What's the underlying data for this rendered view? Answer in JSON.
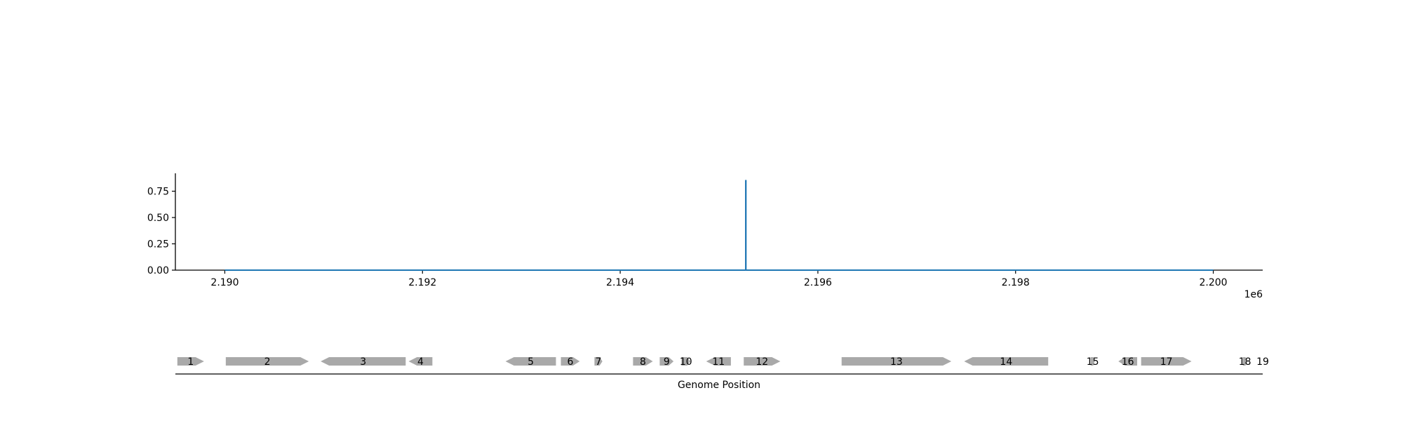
{
  "chart_data": [
    {
      "type": "line",
      "title": "",
      "xlabel": "",
      "ylabel": "",
      "x_offset_label": "1e6",
      "xlim": [
        2189500,
        2200500
      ],
      "ylim": [
        0,
        0.92
      ],
      "xticks": [
        2190000,
        2192000,
        2194000,
        2196000,
        2198000,
        2200000
      ],
      "xtick_labels": [
        "2.190",
        "2.192",
        "2.194",
        "2.196",
        "2.198",
        "2.200"
      ],
      "yticks": [
        0.0,
        0.25,
        0.5,
        0.75
      ],
      "ytick_labels": [
        "0.00",
        "0.25",
        "0.50",
        "0.75"
      ],
      "grid": false,
      "color": "#1f77b4",
      "series": [
        {
          "x": [
            2190000,
            2195270,
            2195270,
            2195272,
            2195272,
            2200000
          ],
          "y": [
            0.0,
            0.0,
            0.85,
            0.85,
            0.0,
            0.0
          ]
        }
      ]
    },
    {
      "type": "gene-track",
      "title": "",
      "xlabel": "Genome Position",
      "xlim": [
        2189500,
        2200500
      ],
      "gene_color": "#a9a9a9",
      "genes": [
        {
          "label": "1",
          "start": 2189520,
          "end": 2189790,
          "strand": "+"
        },
        {
          "label": "2",
          "start": 2190010,
          "end": 2190850,
          "strand": "+"
        },
        {
          "label": "3",
          "start": 2190970,
          "end": 2191830,
          "strand": "-"
        },
        {
          "label": "4",
          "start": 2191860,
          "end": 2192100,
          "strand": "-"
        },
        {
          "label": "5",
          "start": 2192840,
          "end": 2193350,
          "strand": "-"
        },
        {
          "label": "6",
          "start": 2193400,
          "end": 2193590,
          "strand": "+"
        },
        {
          "label": "7",
          "start": 2193740,
          "end": 2193820,
          "strand": "+"
        },
        {
          "label": "8",
          "start": 2194130,
          "end": 2194330,
          "strand": "+"
        },
        {
          "label": "9",
          "start": 2194400,
          "end": 2194540,
          "strand": "+"
        },
        {
          "label": "10",
          "start": 2194620,
          "end": 2194710,
          "strand": "+"
        },
        {
          "label": "11",
          "start": 2194870,
          "end": 2195120,
          "strand": "-"
        },
        {
          "label": "12",
          "start": 2195250,
          "end": 2195620,
          "strand": "+"
        },
        {
          "label": "13",
          "start": 2196240,
          "end": 2197350,
          "strand": "+"
        },
        {
          "label": "14",
          "start": 2197480,
          "end": 2198330,
          "strand": "-"
        },
        {
          "label": "15",
          "start": 2198760,
          "end": 2198800,
          "strand": "+"
        },
        {
          "label": "16",
          "start": 2199040,
          "end": 2199230,
          "strand": "-"
        },
        {
          "label": "17",
          "start": 2199270,
          "end": 2199780,
          "strand": "+"
        },
        {
          "label": "18",
          "start": 2200300,
          "end": 2200340,
          "strand": "+"
        },
        {
          "label": "19",
          "start": 2200500,
          "end": 2200500,
          "strand": "+"
        }
      ]
    }
  ]
}
